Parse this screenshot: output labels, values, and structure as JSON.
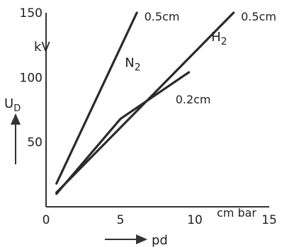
{
  "chart_data": {
    "type": "line",
    "title": "",
    "xlabel": "pd",
    "xunit": "cm bar",
    "ylabel": "U",
    "ylabel_sub": "D",
    "yunit": "kV",
    "xlim": [
      0,
      15
    ],
    "ylim": [
      0,
      150
    ],
    "xticks": [
      {
        "value": 0,
        "label": "0"
      },
      {
        "value": 5,
        "label": "5"
      },
      {
        "value": 10,
        "label": "10"
      },
      {
        "value": 15,
        "label": "15"
      }
    ],
    "yticks": [
      {
        "value": 50,
        "label": "50"
      },
      {
        "value": 100,
        "label": "100"
      },
      {
        "value": 150,
        "label": "150"
      }
    ],
    "series": [
      {
        "name": "N",
        "name_sub": "2",
        "gap": "0.5cm",
        "points": [
          [
            0.7,
            18
          ],
          [
            6.1,
            150
          ]
        ]
      },
      {
        "name": "H",
        "name_sub": "2",
        "gap": "0.5cm",
        "points": [
          [
            0.7,
            11
          ],
          [
            12.6,
            150
          ]
        ]
      },
      {
        "name": "",
        "name_sub": "",
        "gap": "0.2cm",
        "points": [
          [
            0.7,
            10
          ],
          [
            5.0,
            68
          ],
          [
            9.6,
            104
          ]
        ]
      }
    ],
    "grid": false,
    "legend": "none"
  }
}
